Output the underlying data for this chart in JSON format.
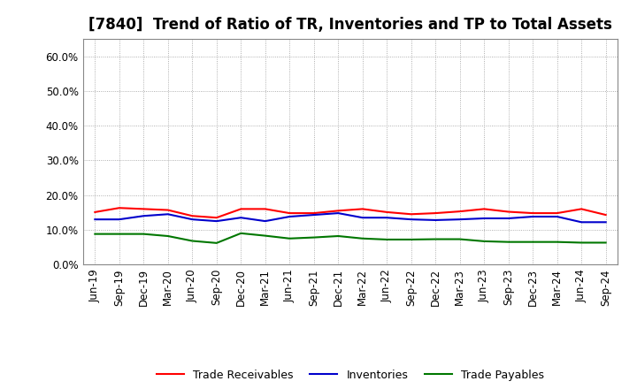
{
  "title": "[7840]  Trend of Ratio of TR, Inventories and TP to Total Assets",
  "labels": [
    "Jun-19",
    "Sep-19",
    "Dec-19",
    "Mar-20",
    "Jun-20",
    "Sep-20",
    "Dec-20",
    "Mar-21",
    "Jun-21",
    "Sep-21",
    "Dec-21",
    "Mar-22",
    "Jun-22",
    "Sep-22",
    "Dec-22",
    "Mar-23",
    "Jun-23",
    "Sep-23",
    "Dec-23",
    "Mar-24",
    "Jun-24",
    "Sep-24"
  ],
  "trade_receivables": [
    0.151,
    0.163,
    0.16,
    0.157,
    0.14,
    0.135,
    0.16,
    0.16,
    0.148,
    0.148,
    0.155,
    0.16,
    0.151,
    0.145,
    0.148,
    0.153,
    0.16,
    0.152,
    0.148,
    0.148,
    0.16,
    0.143
  ],
  "inventories": [
    0.13,
    0.13,
    0.14,
    0.145,
    0.13,
    0.125,
    0.135,
    0.125,
    0.138,
    0.143,
    0.148,
    0.135,
    0.135,
    0.13,
    0.128,
    0.13,
    0.133,
    0.133,
    0.138,
    0.138,
    0.122,
    0.122
  ],
  "trade_payables": [
    0.088,
    0.088,
    0.088,
    0.082,
    0.068,
    0.062,
    0.09,
    0.083,
    0.075,
    0.078,
    0.082,
    0.075,
    0.072,
    0.072,
    0.073,
    0.073,
    0.067,
    0.065,
    0.065,
    0.065,
    0.063,
    0.063
  ],
  "tr_color": "#ff0000",
  "inv_color": "#0000cc",
  "tp_color": "#007700",
  "ylim": [
    0.0,
    0.65
  ],
  "yticks": [
    0.0,
    0.1,
    0.2,
    0.3,
    0.4,
    0.5,
    0.6
  ],
  "background_color": "#ffffff",
  "grid_color": "#999999",
  "title_fontsize": 12,
  "tick_fontsize": 8.5,
  "legend_labels": [
    "Trade Receivables",
    "Inventories",
    "Trade Payables"
  ]
}
